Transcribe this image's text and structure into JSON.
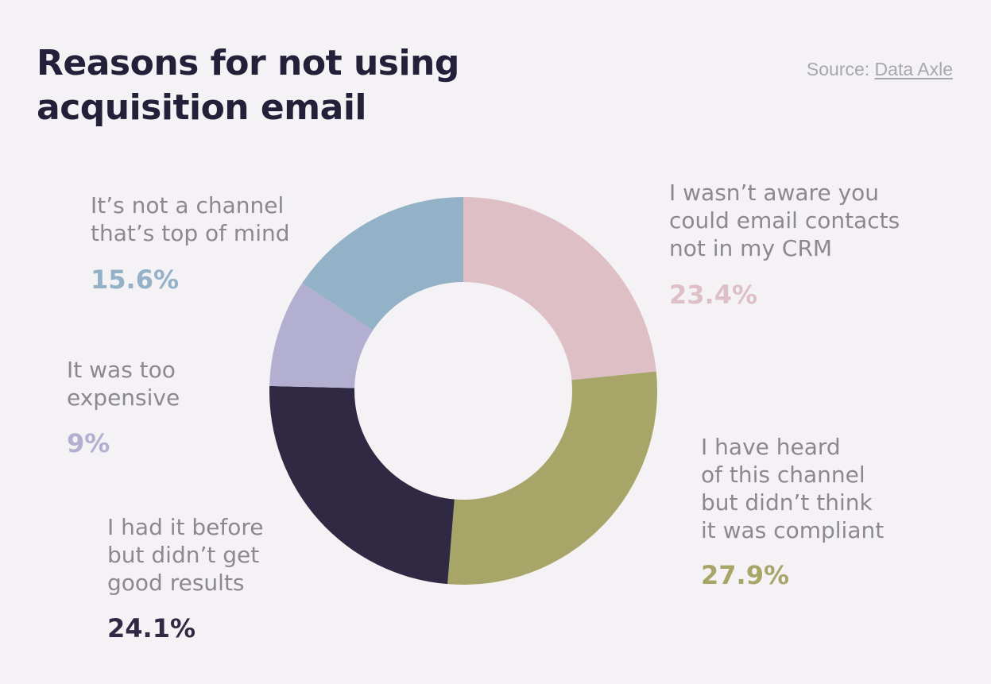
{
  "title_lines": [
    "Reasons for not using",
    "acquisition email"
  ],
  "source": {
    "prefix": "Source: ",
    "link_text": "Data Axle"
  },
  "colors": {
    "background": "#f4f2f4",
    "title": "#24203a",
    "label": "#8b898f",
    "source": "#a9a7ae"
  },
  "chart_data": {
    "type": "pie",
    "title": "Reasons for not using acquisition email",
    "donut": true,
    "slices": [
      {
        "label_lines": [
          "I wasn’t aware you",
          "could email contacts",
          "not in my CRM"
        ],
        "value": 23.4,
        "value_label": "23.4%",
        "color": "#dfbfc6"
      },
      {
        "label_lines": [
          "I have heard",
          "of this channel",
          "but didn’t think",
          "it was compliant"
        ],
        "value": 27.9,
        "value_label": "27.9%",
        "color": "#a8a568"
      },
      {
        "label_lines": [
          "I had it before",
          "but didn’t get",
          "good results"
        ],
        "value": 24.1,
        "value_label": "24.1%",
        "color": "#2f2943"
      },
      {
        "label_lines": [
          "It was too",
          "expensive"
        ],
        "value": 9,
        "value_label": "9%",
        "color": "#b2afd0"
      },
      {
        "label_lines": [
          "It’s not a channel",
          "that’s top of mind"
        ],
        "value": 15.6,
        "value_label": "15.6%",
        "color": "#93b1c7"
      }
    ]
  }
}
